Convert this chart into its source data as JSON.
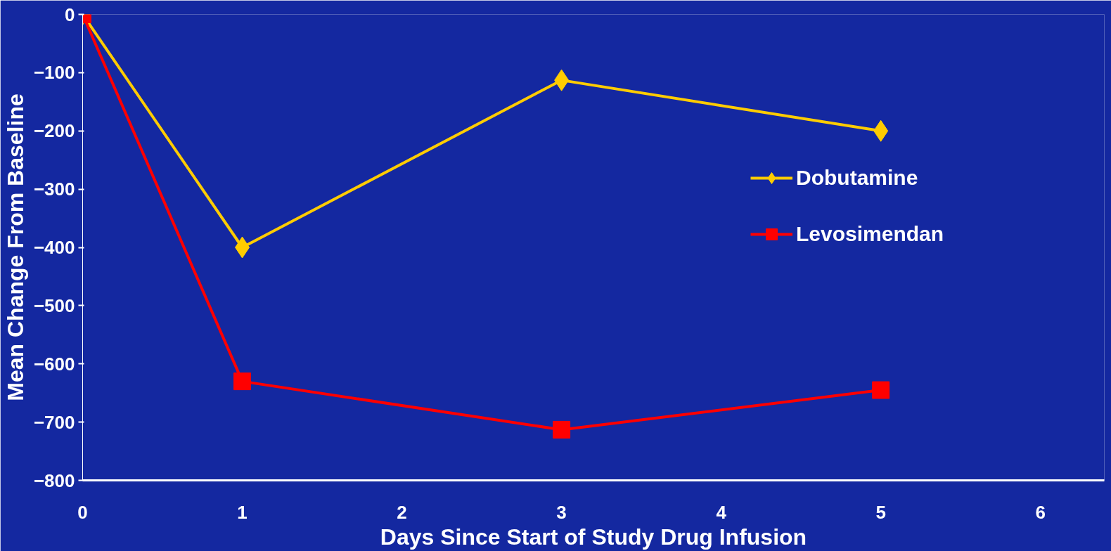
{
  "chart_data": {
    "type": "line",
    "xlabel": "Days Since Start of Study Drug Infusion",
    "ylabel": "Mean Change From Baseline",
    "x": [
      0,
      1,
      3,
      5
    ],
    "series": [
      {
        "name": "Dobutamine",
        "color": "#ffcc00",
        "marker": "diamond",
        "values": [
          0,
          -400,
          -113,
          -200
        ]
      },
      {
        "name": "Levosimendan",
        "color": "#ff0000",
        "marker": "square",
        "values": [
          0,
          -630,
          -713,
          -645
        ]
      }
    ],
    "xlim": [
      0,
      6.4
    ],
    "xticks": [
      0,
      1,
      2,
      3,
      4,
      5,
      6
    ],
    "ylim": [
      -800,
      0
    ],
    "yticks": [
      -800,
      -700,
      -600,
      -500,
      -400,
      -300,
      -200,
      -100,
      0
    ],
    "grid": false,
    "legend": "right",
    "line_style": "solid"
  }
}
